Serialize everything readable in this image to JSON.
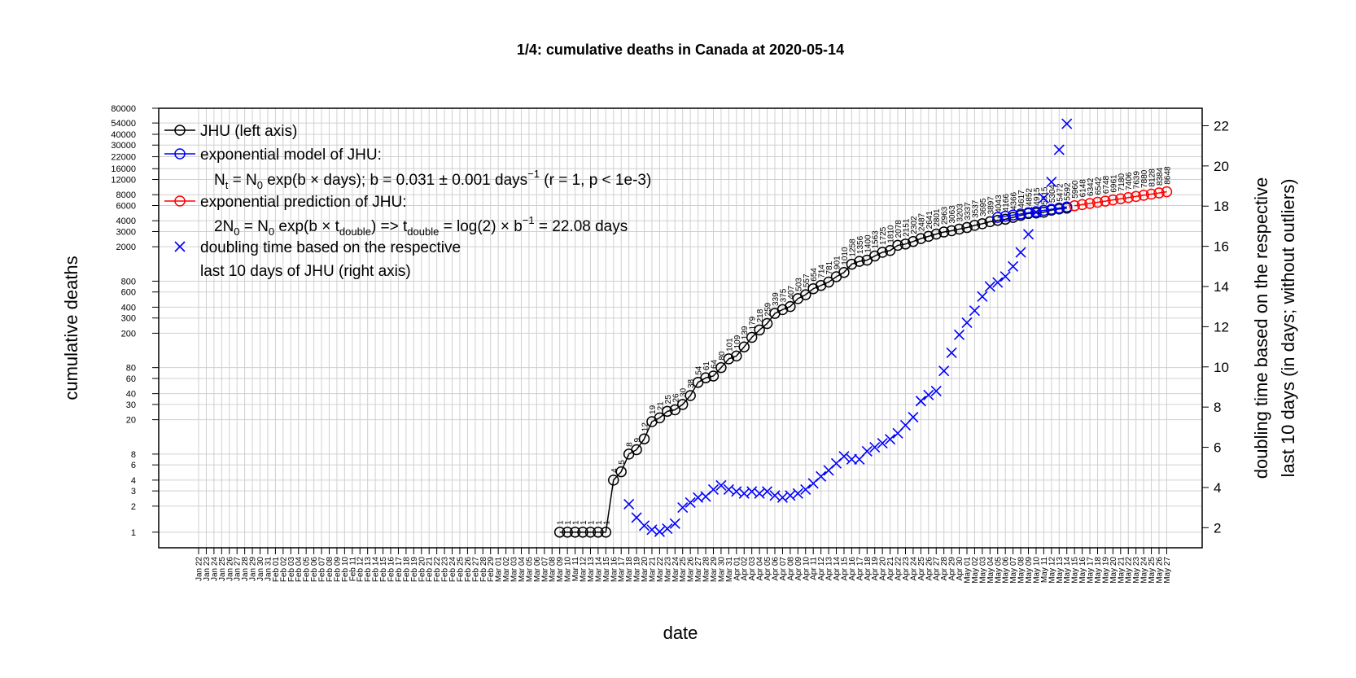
{
  "chart_data": {
    "type": "line",
    "title": "1/4: cumulative deaths in Canada at 2020-05-14",
    "x_label": "date",
    "y_label": "cumulative deaths",
    "y2_label": [
      "doubling time based on the respective",
      "last 10 days (in days; without outliers)"
    ],
    "log_y": true,
    "grid": true,
    "legend": "top-left",
    "categories": [
      "Jan 22",
      "Jan 23",
      "Jan 24",
      "Jan 25",
      "Jan 26",
      "Jan 27",
      "Jan 28",
      "Jan 29",
      "Jan 30",
      "Jan 31",
      "Feb 01",
      "Feb 02",
      "Feb 03",
      "Feb 04",
      "Feb 05",
      "Feb 06",
      "Feb 07",
      "Feb 08",
      "Feb 09",
      "Feb 10",
      "Feb 11",
      "Feb 12",
      "Feb 13",
      "Feb 14",
      "Feb 15",
      "Feb 16",
      "Feb 17",
      "Feb 18",
      "Feb 19",
      "Feb 20",
      "Feb 21",
      "Feb 22",
      "Feb 23",
      "Feb 24",
      "Feb 25",
      "Feb 26",
      "Feb 27",
      "Feb 28",
      "Feb 29",
      "Mar 01",
      "Mar 02",
      "Mar 03",
      "Mar 04",
      "Mar 05",
      "Mar 06",
      "Mar 07",
      "Mar 08",
      "Mar 09",
      "Mar 10",
      "Mar 11",
      "Mar 12",
      "Mar 13",
      "Mar 14",
      "Mar 15",
      "Mar 16",
      "Mar 17",
      "Mar 18",
      "Mar 19",
      "Mar 20",
      "Mar 21",
      "Mar 22",
      "Mar 23",
      "Mar 24",
      "Mar 25",
      "Mar 26",
      "Mar 27",
      "Mar 28",
      "Mar 29",
      "Mar 30",
      "Mar 31",
      "Apr 01",
      "Apr 02",
      "Apr 03",
      "Apr 04",
      "Apr 05",
      "Apr 06",
      "Apr 07",
      "Apr 08",
      "Apr 09",
      "Apr 10",
      "Apr 11",
      "Apr 12",
      "Apr 13",
      "Apr 14",
      "Apr 15",
      "Apr 16",
      "Apr 17",
      "Apr 18",
      "Apr 19",
      "Apr 20",
      "Apr 21",
      "Apr 22",
      "Apr 23",
      "Apr 24",
      "Apr 25",
      "Apr 26",
      "Apr 27",
      "Apr 28",
      "Apr 29",
      "Apr 30",
      "May 01",
      "May 02",
      "May 03",
      "May 04",
      "May 05",
      "May 06",
      "May 07",
      "May 08",
      "May 09",
      "May 10",
      "May 11",
      "May 12",
      "May 13",
      "May 14",
      "May 15",
      "May 16",
      "May 17",
      "May 18",
      "May 19",
      "May 20",
      "May 21",
      "May 22",
      "May 23",
      "May 24",
      "May 25",
      "May 26",
      "May 27"
    ],
    "category_colors": [
      "#000000",
      "#000000",
      "#000000",
      "#e69f00",
      "#e69f00",
      "#000000",
      "#000000",
      "#000000",
      "#000000",
      "#000000",
      "#e69f00",
      "#e69f00",
      "#000000",
      "#000000",
      "#000000",
      "#000000",
      "#000000",
      "#e69f00",
      "#e69f00",
      "#000000",
      "#000000",
      "#000000",
      "#000000",
      "#000000",
      "#e69f00",
      "#e69f00",
      "#000000",
      "#000000",
      "#000000",
      "#000000",
      "#000000",
      "#e69f00",
      "#e69f00",
      "#000000",
      "#000000",
      "#000000",
      "#000000",
      "#000000",
      "#e69f00",
      "#e69f00",
      "#000000",
      "#000000",
      "#000000",
      "#000000",
      "#000000",
      "#e69f00",
      "#e69f00",
      "#000000",
      "#000000",
      "#000000",
      "#000000",
      "#000000",
      "#e69f00",
      "#e69f00",
      "#000000",
      "#000000",
      "#000000",
      "#000000",
      "#000000",
      "#e69f00",
      "#e69f00",
      "#000000",
      "#000000",
      "#000000",
      "#000000",
      "#000000",
      "#e69f00",
      "#e69f00",
      "#000000",
      "#000000",
      "#000000",
      "#000000",
      "#000000",
      "#e69f00",
      "#e69f00",
      "#000000",
      "#000000",
      "#000000",
      "#000000",
      "#000000",
      "#e69f00",
      "#e69f00",
      "#000000",
      "#000000",
      "#000000",
      "#000000",
      "#000000",
      "#e69f00",
      "#e69f00",
      "#000000",
      "#000000",
      "#000000",
      "#000000",
      "#000000",
      "#e69f00",
      "#e69f00",
      "#000000",
      "#000000",
      "#000000",
      "#000000",
      "#000000",
      "#e69f00",
      "#e69f00",
      "#000000",
      "#000000",
      "#000000",
      "#000000",
      "#000000",
      "#e69f00",
      "#e69f00",
      "#000000",
      "#000000",
      "#000000",
      "#000000",
      "#000000",
      "#e69f00",
      "#e69f00",
      "#000000",
      "#000000",
      "#000000",
      "#000000",
      "#000000",
      "#e69f00",
      "#e69f00",
      "#000000",
      "#000000",
      "#000000",
      "#000000"
    ],
    "ylim": [
      0.66,
      80000
    ],
    "yticks": [
      1,
      2,
      3,
      4,
      6,
      8,
      20,
      30,
      40,
      60,
      80,
      200,
      300,
      400,
      600,
      800,
      2000,
      3000,
      4000,
      6000,
      8000,
      12000,
      16000,
      22000,
      30000,
      40000,
      54000,
      80000
    ],
    "y2lim": [
      1.0,
      22.87
    ],
    "y2ticks": [
      2,
      4,
      6,
      8,
      10,
      12,
      14,
      16,
      18,
      20,
      22
    ],
    "series": [
      {
        "name": "JHU (left axis)",
        "color": "#000000",
        "marker": "circle",
        "labels": true,
        "x": [
          "Mar 09",
          "Mar 10",
          "Mar 11",
          "Mar 12",
          "Mar 13",
          "Mar 14",
          "Mar 15",
          "Mar 16",
          "Mar 17",
          "Mar 18",
          "Mar 19",
          "Mar 20",
          "Mar 21",
          "Mar 22",
          "Mar 23",
          "Mar 24",
          "Mar 25",
          "Mar 26",
          "Mar 27",
          "Mar 28",
          "Mar 29",
          "Mar 30",
          "Mar 31",
          "Apr 01",
          "Apr 02",
          "Apr 03",
          "Apr 04",
          "Apr 05",
          "Apr 06",
          "Apr 07",
          "Apr 08",
          "Apr 09",
          "Apr 10",
          "Apr 11",
          "Apr 12",
          "Apr 13",
          "Apr 14",
          "Apr 15",
          "Apr 16",
          "Apr 17",
          "Apr 18",
          "Apr 19",
          "Apr 20",
          "Apr 21",
          "Apr 22",
          "Apr 23",
          "Apr 24",
          "Apr 25",
          "Apr 26",
          "Apr 27",
          "Apr 28",
          "Apr 29",
          "Apr 30",
          "May 01",
          "May 02",
          "May 03",
          "May 04",
          "May 05",
          "May 06",
          "May 07",
          "May 08",
          "May 09",
          "May 10",
          "May 11",
          "May 12",
          "May 13",
          "May 14"
        ],
        "values": [
          1,
          1,
          1,
          1,
          1,
          1,
          1,
          4,
          5,
          8,
          9,
          12,
          19,
          21,
          25,
          26,
          30,
          38,
          54,
          61,
          64,
          80,
          101,
          109,
          139,
          179,
          218,
          259,
          339,
          375,
          407,
          503,
          557,
          654,
          714,
          781,
          901,
          1010,
          1258,
          1356,
          1400,
          1563,
          1725,
          1810,
          2078,
          2151,
          2302,
          2487,
          2641,
          2801,
          2963,
          3063,
          3203,
          3337,
          3537,
          3695,
          3897,
          4043,
          4166,
          4366,
          4617,
          4852,
          4915,
          5015,
          5304,
          5472,
          5592
        ]
      },
      {
        "name": "exponential model of JHU:",
        "color": "#0000ff",
        "marker": "circle",
        "labels": false,
        "x": [
          "May 05",
          "May 06",
          "May 07",
          "May 08",
          "May 09",
          "May 10",
          "May 11",
          "May 12",
          "May 13",
          "May 14"
        ],
        "values": [
          4370,
          4508,
          4650,
          4796,
          4947,
          5103,
          5264,
          5430,
          5601,
          5778
        ]
      },
      {
        "name": "exponential prediction of JHU:",
        "color": "#ff0000",
        "marker": "circle",
        "labels": true,
        "x": [
          "May 15",
          "May 16",
          "May 17",
          "May 18",
          "May 19",
          "May 20",
          "May 21",
          "May 22",
          "May 23",
          "May 24",
          "May 25",
          "May 26",
          "May 27"
        ],
        "values": [
          5960,
          6148,
          6342,
          6542,
          6748,
          6961,
          7180,
          7406,
          7639,
          7880,
          8128,
          8384,
          8648
        ]
      },
      {
        "name": "doubling time based on the respective",
        "name_line2": "last 10 days of JHU (right axis)",
        "color": "#0000ff",
        "marker": "cross",
        "axis": "y2",
        "x": [
          "Mar 18",
          "Mar 19",
          "Mar 20",
          "Mar 21",
          "Mar 22",
          "Mar 23",
          "Mar 24",
          "Mar 25",
          "Mar 26",
          "Mar 27",
          "Mar 28",
          "Mar 29",
          "Mar 30",
          "Mar 31",
          "Apr 01",
          "Apr 02",
          "Apr 03",
          "Apr 04",
          "Apr 05",
          "Apr 06",
          "Apr 07",
          "Apr 08",
          "Apr 09",
          "Apr 10",
          "Apr 11",
          "Apr 12",
          "Apr 13",
          "Apr 14",
          "Apr 15",
          "Apr 16",
          "Apr 17",
          "Apr 18",
          "Apr 19",
          "Apr 20",
          "Apr 21",
          "Apr 22",
          "Apr 23",
          "Apr 24",
          "Apr 25",
          "Apr 26",
          "Apr 27",
          "Apr 28",
          "Apr 29",
          "Apr 30",
          "May 01",
          "May 02",
          "May 03",
          "May 04",
          "May 05",
          "May 06",
          "May 07",
          "May 08",
          "May 09",
          "May 10",
          "May 11",
          "May 12",
          "May 13",
          "May 14"
        ],
        "values": [
          3.17,
          2.5,
          2.1,
          1.9,
          1.8,
          1.95,
          2.2,
          3.0,
          3.25,
          3.5,
          3.55,
          3.9,
          4.1,
          3.9,
          3.8,
          3.7,
          3.8,
          3.7,
          3.8,
          3.6,
          3.5,
          3.6,
          3.7,
          3.9,
          4.2,
          4.55,
          4.85,
          5.2,
          5.55,
          5.4,
          5.4,
          5.8,
          6.0,
          6.2,
          6.4,
          6.7,
          7.1,
          7.5,
          8.3,
          8.6,
          8.8,
          9.8,
          10.7,
          11.6,
          12.2,
          12.8,
          13.5,
          14,
          14.2,
          14.5,
          15,
          15.7,
          16.6,
          17.7,
          18.4,
          19.2,
          20.8,
          22.1
        ]
      }
    ],
    "formula1": [
      "N",
      "t",
      " = N",
      "0",
      " exp(b × days); b = 0.031 ± 0.001 days",
      "−1",
      " (r = 1, p < 1e-3)"
    ],
    "formula2": [
      "2N",
      "0",
      " = N",
      "0",
      " exp(b × t",
      "double",
      ") => t",
      "double",
      " = log(2) × b",
      "−1",
      " = 22.08 days"
    ]
  }
}
